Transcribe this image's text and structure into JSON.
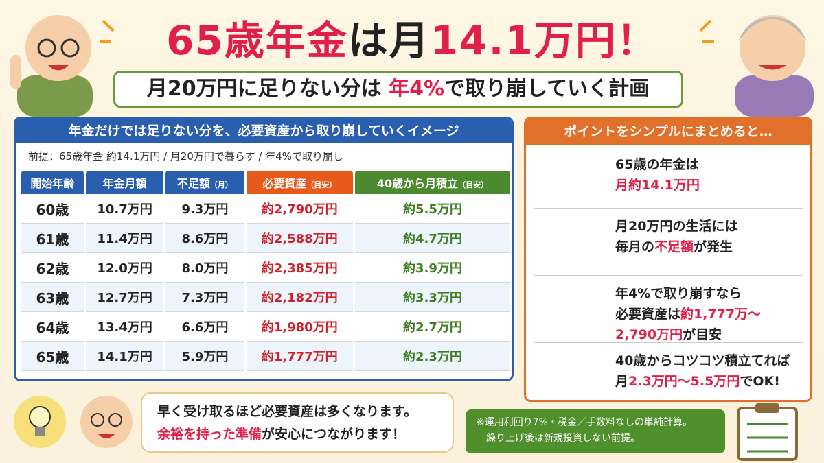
{
  "title": [
    {
      "text": "65歳年金",
      "color": "#e0204a"
    },
    "は月",
    {
      "text": "14.1万円！",
      "color": "#e0204a"
    }
  ],
  "subtitle": [
    "月20万円に足りない分は ",
    {
      "text": "年4%",
      "color": "#e0204a"
    },
    "で取り崩していく計画"
  ],
  "table": {
    "header": "年金だけでは足りない分を、必要資産から取り崩していくイメージ",
    "premise": "前提：65歳年金 約14.1万円 / 月20万円で暮らす / 年4%で取り崩し",
    "columns": [
      [
        "開始年齢"
      ],
      [
        "年金月額"
      ],
      [
        "不足額",
        "（月）"
      ],
      [
        "必要資産",
        "（目安）"
      ],
      [
        "40歳から月積立",
        "（目安）"
      ]
    ],
    "rows": [
      [
        "60歳",
        "10.7万円",
        "9.3万円",
        "約2,790万円",
        "約5.5万円"
      ],
      [
        "61歳",
        "11.4万円",
        "8.6万円",
        "約2,588万円",
        "約4.7万円"
      ],
      [
        "62歳",
        "12.0万円",
        "8.0万円",
        "約2,385万円",
        "約3.9万円"
      ],
      [
        "63歳",
        "12.7万円",
        "7.3万円",
        "約2,182万円",
        "約3.3万円"
      ],
      [
        "64歳",
        "13.4万円",
        "6.6万円",
        "約1,980万円",
        "約2.7万円"
      ],
      [
        "65歳",
        "14.1万円",
        "5.9万円",
        "約1,777万円",
        "約2.3万円"
      ]
    ]
  },
  "points": {
    "header": "ポイントをシンプルにまとめると…",
    "items": [
      {
        "lines": [
          [
            "65歳の年金は"
          ],
          [
            {
              "text": "月約14.1万円",
              "color": "#e0204a"
            }
          ]
        ]
      },
      {
        "lines": [
          [
            "月20万円の生活には"
          ],
          [
            "毎月の",
            {
              "text": "不足額",
              "color": "#e0204a"
            },
            "が発生"
          ]
        ]
      },
      {
        "lines": [
          [
            "年4%で取り崩すなら"
          ],
          [
            "必要資産は",
            {
              "text": "約1,777万～",
              "color": "#e0204a"
            }
          ],
          [
            {
              "text": "2,790万円",
              "color": "#e0204a"
            },
            "が目安"
          ]
        ]
      },
      {
        "lines": [
          [
            "40歳からコツコツ積立てれば"
          ],
          [
            "月",
            {
              "text": "2.3万円～5.5万円",
              "color": "#e0204a"
            },
            "でOK!"
          ]
        ]
      }
    ]
  },
  "bubble": {
    "lines": [
      [
        "早く受け取るほど必要資産は多くなります。"
      ],
      [
        {
          "text": "余裕を持った準備",
          "color": "#e0204a"
        },
        "が安心につながります！"
      ]
    ]
  },
  "note": {
    "lines": [
      "※運用利回り7%・税金／手数料なしの単純計算。",
      "　繰り上げ後は新規投資しない前提。"
    ]
  }
}
